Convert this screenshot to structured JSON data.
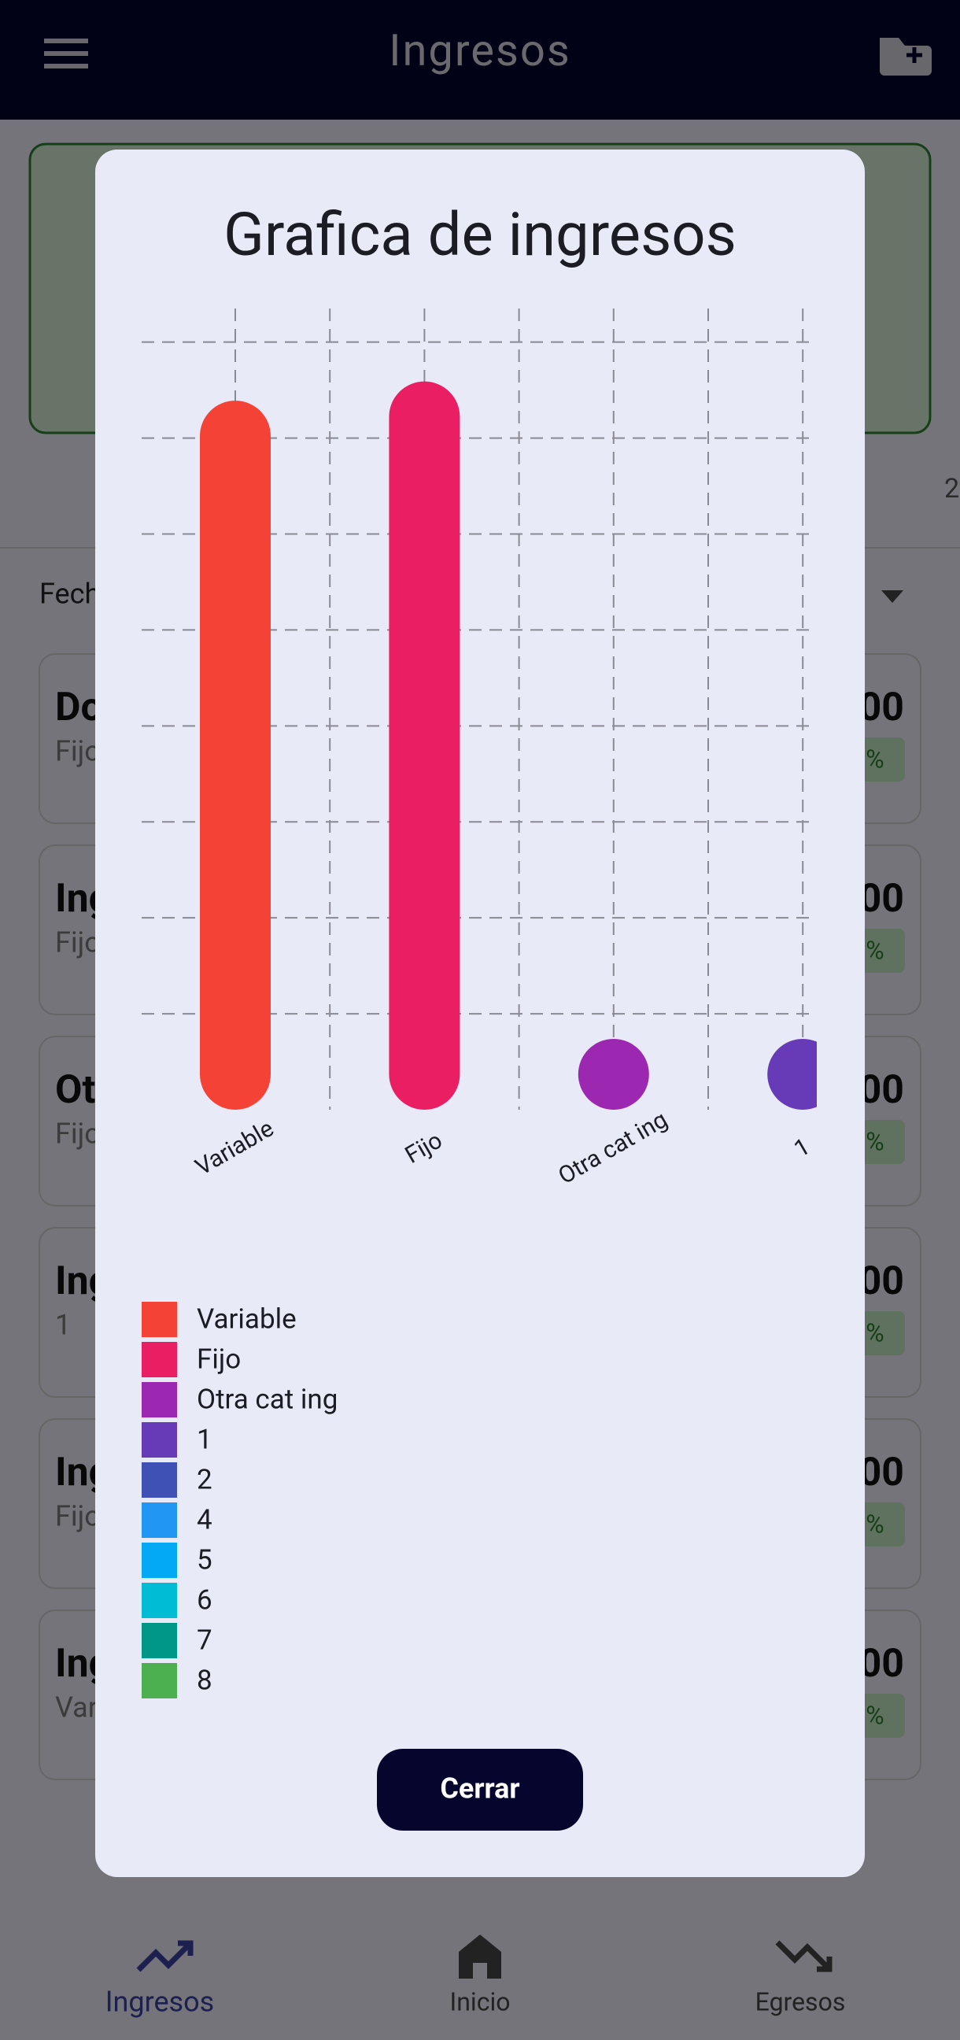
{
  "app_bar": {
    "title": "Ingresos"
  },
  "background": {
    "summary_count": "2",
    "filter_label": "Fech",
    "items": [
      {
        "title": "Do",
        "subtitle": "Fijo",
        "amount": "00",
        "badge": "%"
      },
      {
        "title": "Ing",
        "subtitle": "Fijo",
        "amount": "00",
        "badge": "%"
      },
      {
        "title": "Ot",
        "subtitle": "Fijo",
        "amount": "00",
        "badge": "%"
      },
      {
        "title": "Ing",
        "subtitle": "1",
        "amount": "00",
        "badge": "%"
      },
      {
        "title": "Ing",
        "subtitle": "Fijo",
        "amount": "00",
        "badge": "%"
      },
      {
        "title": "Ing",
        "subtitle": "Var",
        "amount": "00",
        "badge": "%"
      }
    ]
  },
  "chart_data": {
    "type": "bar",
    "title": "Grafica de ingresos",
    "categories": [
      "Variable",
      "Fijo",
      "Otra cat ing",
      "1"
    ],
    "values": [
      7.39,
      7.59,
      0,
      0
    ],
    "colors": [
      "#f44336",
      "#e91e63",
      "#9c27b0",
      "#673ab7"
    ],
    "ylim": [
      0,
      8.35
    ],
    "yticks": [
      1,
      2,
      3,
      4,
      5,
      6,
      7,
      8
    ],
    "grid": true,
    "legend": [
      {
        "name": "Variable",
        "color": "#f44336"
      },
      {
        "name": "Fijo",
        "color": "#e91e63"
      },
      {
        "name": "Otra cat ing",
        "color": "#9c27b0"
      },
      {
        "name": "1",
        "color": "#673ab7"
      },
      {
        "name": "2",
        "color": "#3f51b5"
      },
      {
        "name": "4",
        "color": "#2196f3"
      },
      {
        "name": "5",
        "color": "#03a9f4"
      },
      {
        "name": "6",
        "color": "#00bcd4"
      },
      {
        "name": "7",
        "color": "#009688"
      },
      {
        "name": "8",
        "color": "#4caf50"
      }
    ]
  },
  "dialog": {
    "button": "Cerrar"
  },
  "nav": [
    "Ingresos",
    "Inicio",
    "Egresos"
  ]
}
